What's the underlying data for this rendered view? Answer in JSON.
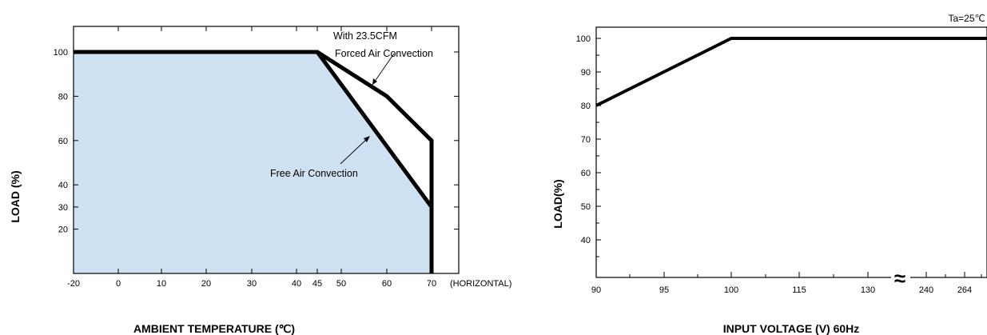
{
  "chart_data": [
    {
      "type": "line",
      "xlabel": "AMBIENT TEMPERATURE (℃)",
      "ylabel": "LOAD (%)",
      "x_ticks": [
        "-20",
        "0",
        "10",
        "20",
        "30",
        "40",
        "45",
        "50",
        "60",
        "70"
      ],
      "x_extra_label": "(HORIZONTAL)",
      "y_ticks": [
        "20",
        "30",
        "40",
        "60",
        "80",
        "100"
      ],
      "xlim": [
        -20,
        70
      ],
      "ylim": [
        0,
        110
      ],
      "fill_color": "#cfe2f3",
      "series": [
        {
          "name": "With 23.5CFM Forced Air Convection",
          "points": [
            [
              -20,
              100
            ],
            [
              45,
              100
            ],
            [
              60,
              80
            ],
            [
              70,
              60
            ],
            [
              70,
              0
            ]
          ]
        },
        {
          "name": "Free Air Convection",
          "points": [
            [
              -20,
              100
            ],
            [
              45,
              100
            ],
            [
              70,
              30
            ],
            [
              70,
              0
            ]
          ]
        }
      ],
      "annotations": {
        "forced_line1": "With 23.5CFM",
        "forced_line2": "Forced Air Convection",
        "free": "Free Air Convection"
      }
    },
    {
      "type": "line",
      "xlabel": "INPUT VOLTAGE (V) 60Hz",
      "ylabel": "LOAD(%)",
      "condition": "Ta=25℃",
      "x_ticks": [
        "90",
        "95",
        "100",
        "115",
        "130",
        "240",
        "264"
      ],
      "y_ticks": [
        "40",
        "50",
        "60",
        "70",
        "80",
        "90",
        "100"
      ],
      "ylim": [
        30,
        105
      ],
      "axis_break": "≈",
      "series": [
        {
          "points": [
            [
              "90",
              80
            ],
            [
              "100",
              100
            ],
            [
              "264",
              100
            ]
          ]
        }
      ]
    }
  ]
}
